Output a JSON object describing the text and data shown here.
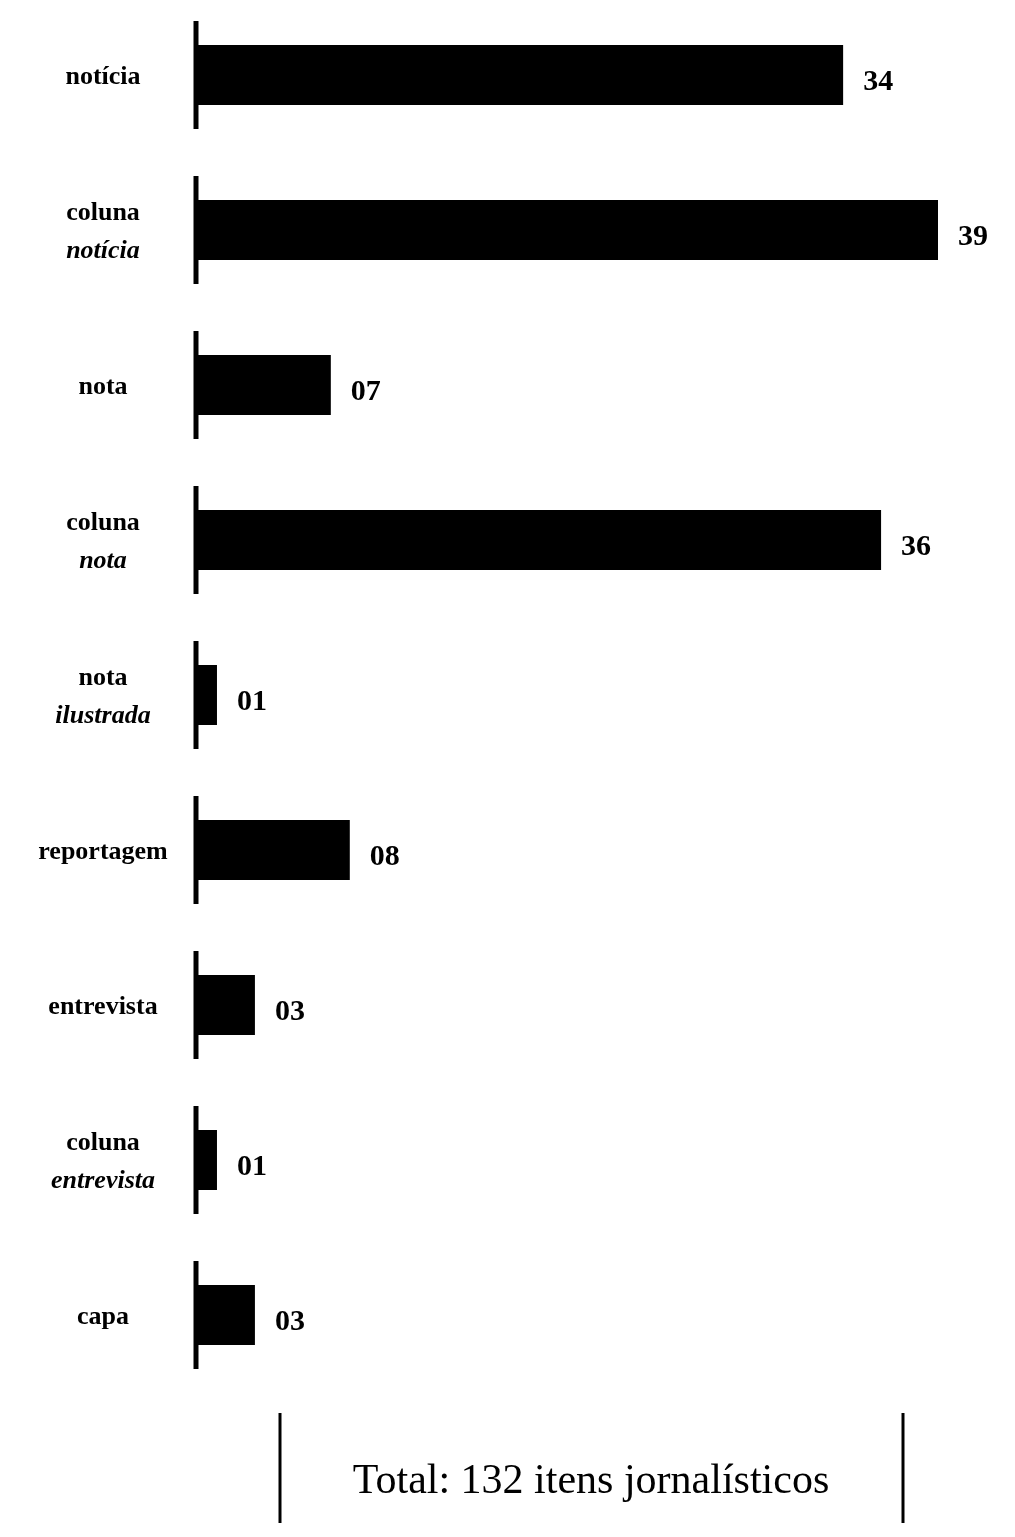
{
  "chart_data": {
    "type": "bar",
    "orientation": "horizontal",
    "categories": [
      "notícia",
      "coluna\nnotícia",
      "nota",
      "coluna\nnota",
      "nota\nilustrada",
      "reportagem",
      "entrevista",
      "coluna\nentrevista",
      "capa"
    ],
    "values": [
      34,
      39,
      7,
      36,
      1,
      8,
      3,
      1,
      3
    ],
    "value_labels": [
      "34",
      "39",
      "07",
      "36",
      "01",
      "08",
      "03",
      "01",
      "03"
    ],
    "color": "#000000",
    "annotations": [
      "Total: 132 itens jornalísticos"
    ]
  }
}
